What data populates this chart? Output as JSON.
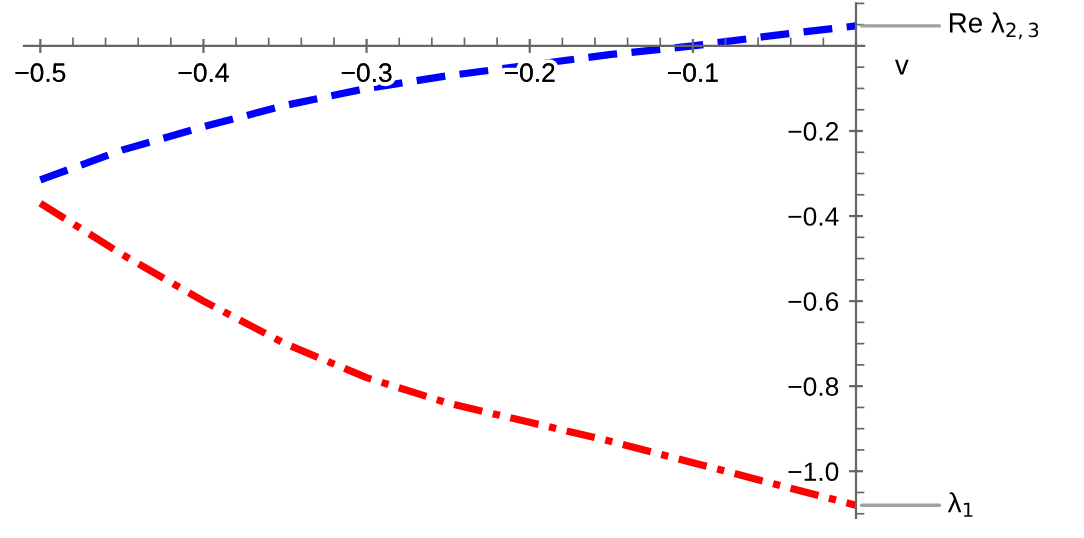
{
  "chart_data": {
    "type": "line",
    "xlabel": "v",
    "x": [
      -0.5,
      -0.45,
      -0.4,
      -0.35,
      -0.3,
      -0.25,
      -0.2,
      -0.15,
      -0.1,
      -0.05,
      0
    ],
    "series": [
      {
        "name": "Re λ$_{2,3}$",
        "color": "#0000ff",
        "line_style": "dashed",
        "values": [
          -0.315,
          -0.245,
          -0.19,
          -0.14,
          -0.1,
          -0.07,
          -0.045,
          -0.02,
          0.0,
          0.025,
          0.047
        ]
      },
      {
        "name": "λ$_{1}$",
        "color": "#ff0000",
        "line_style": "dashdot",
        "values": [
          -0.37,
          -0.49,
          -0.6,
          -0.7,
          -0.78,
          -0.84,
          -0.885,
          -0.93,
          -0.98,
          -1.03,
          -1.08
        ]
      }
    ],
    "xlim": [
      -0.51,
      0
    ],
    "ylim": [
      -1.11,
      0.1
    ],
    "xticks": [
      -0.5,
      -0.4,
      -0.3,
      -0.2,
      -0.1
    ],
    "yticks": [
      -0.2,
      -0.4,
      -0.6,
      -0.8,
      {
        "value": -1,
        "label": "−1.0"
      }
    ],
    "grid": false,
    "legend": false,
    "marker": "none"
  }
}
